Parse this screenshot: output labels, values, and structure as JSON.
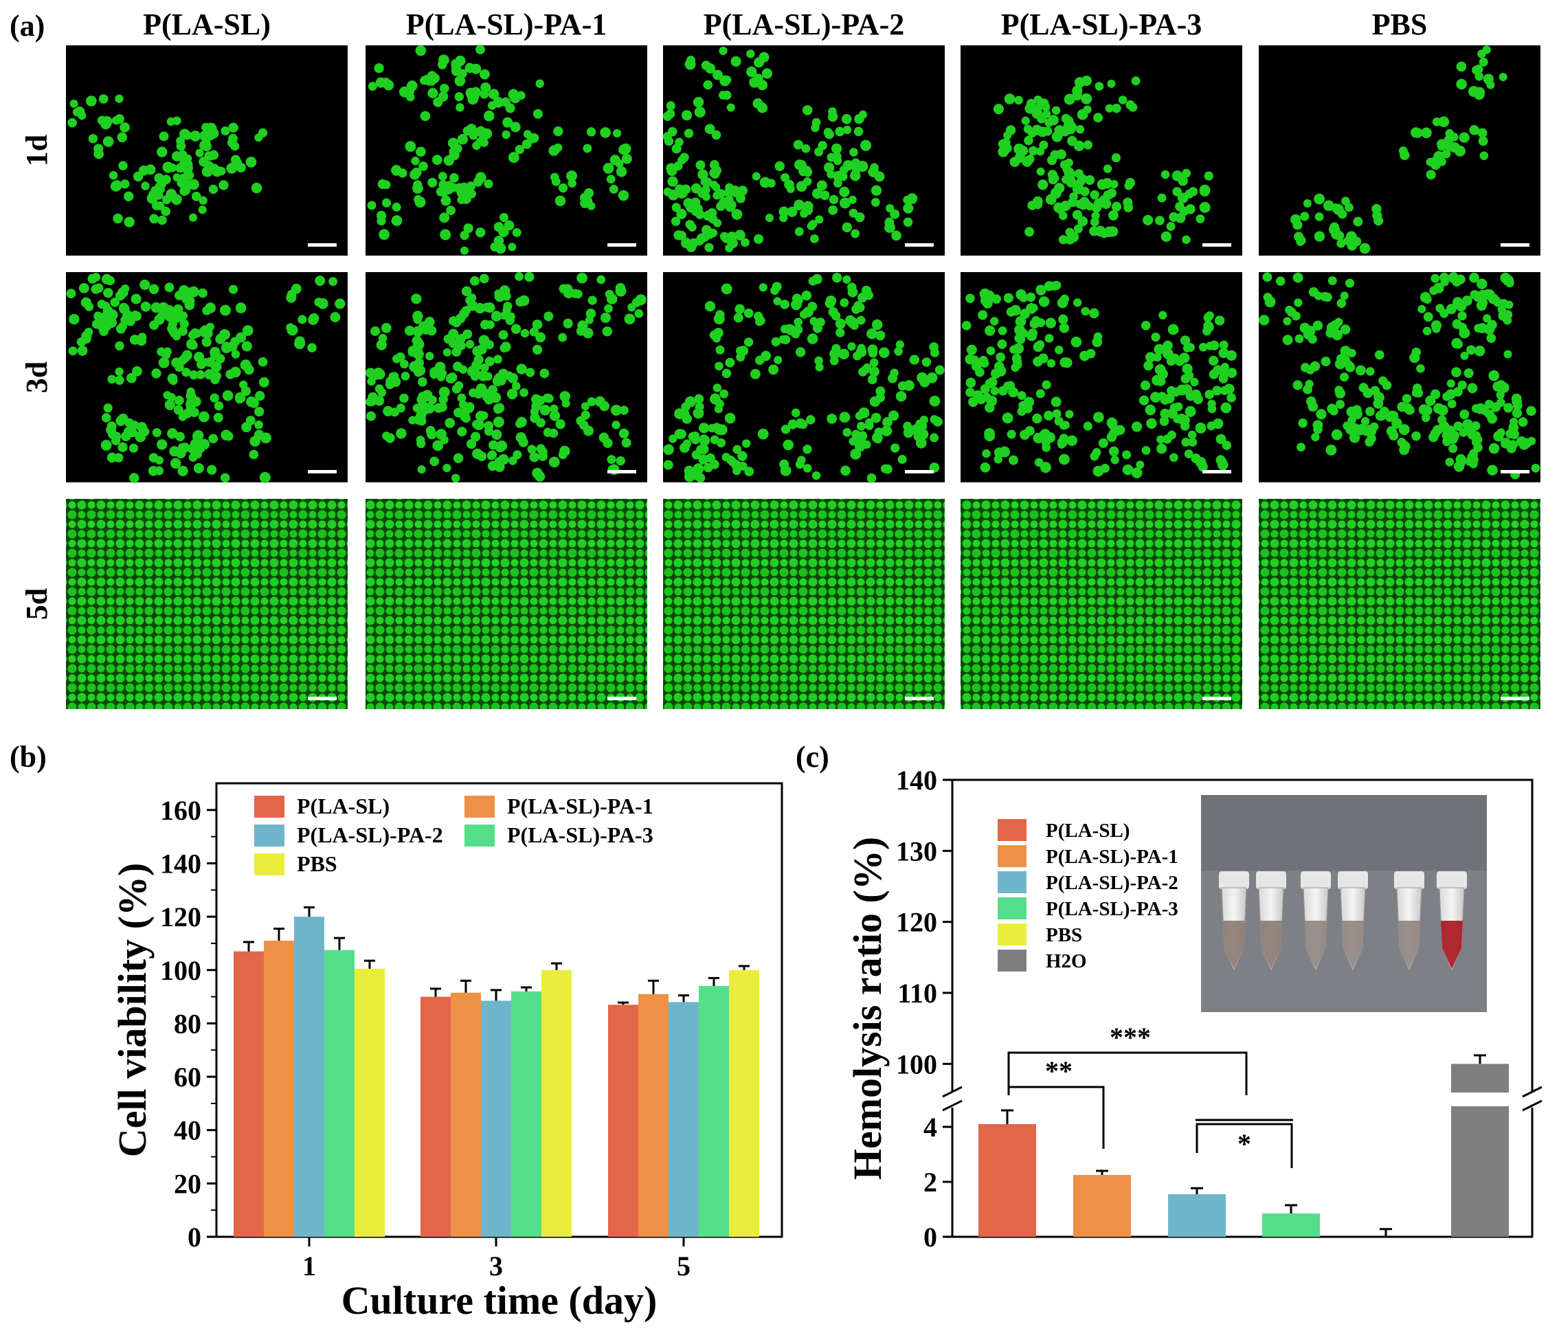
{
  "panel_a": {
    "letter": "(a)",
    "columns": [
      "P(LA-SL)",
      "P(LA-SL)-PA-1",
      "P(LA-SL)-PA-2",
      "P(LA-SL)-PA-3",
      "PBS"
    ],
    "rows": [
      "1d",
      "3d",
      "5d"
    ],
    "image_tone": "#1fd020",
    "density": [
      [
        0.35,
        0.55,
        0.6,
        0.45,
        0.22
      ],
      [
        0.75,
        0.78,
        0.72,
        0.7,
        0.74
      ],
      [
        1.0,
        1.0,
        1.0,
        1.0,
        1.0
      ]
    ]
  },
  "chart_data": [
    {
      "letter": "(b)",
      "type": "bar",
      "xlabel": "Culture time (day)",
      "ylabel": "Cell viability (%)",
      "categories": [
        "1",
        "3",
        "5"
      ],
      "ylim": [
        0,
        170
      ],
      "yticks": [
        0,
        20,
        40,
        60,
        80,
        100,
        120,
        140,
        160
      ],
      "legend_position": "top-left",
      "series": [
        {
          "name": "P(LA-SL)",
          "color": "#e2664a",
          "values": [
            107,
            90,
            87
          ],
          "errors": [
            3.5,
            3,
            0.8
          ]
        },
        {
          "name": "P(LA-SL)-PA-1",
          "color": "#ed9147",
          "values": [
            111,
            91.5,
            91
          ],
          "errors": [
            4.5,
            4.5,
            5
          ]
        },
        {
          "name": "P(LA-SL)-PA-2",
          "color": "#6fb5c9",
          "values": [
            120,
            88.5,
            88
          ],
          "errors": [
            3.5,
            4,
            2.5
          ]
        },
        {
          "name": "P(LA-SL)-PA-3",
          "color": "#55de8a",
          "values": [
            107.5,
            92,
            94
          ],
          "errors": [
            4.5,
            1.5,
            3
          ]
        },
        {
          "name": "PBS",
          "color": "#eaee3b",
          "values": [
            100.5,
            100,
            100
          ],
          "errors": [
            3,
            2.5,
            1.5
          ]
        }
      ]
    },
    {
      "letter": "(c)",
      "type": "bar",
      "ylabel": "Hemolysis ratio (%)",
      "axis_break": {
        "lower_range": [
          0,
          5
        ],
        "upper_range": [
          95,
          140
        ]
      },
      "lower_yticks": [
        0,
        2,
        4
      ],
      "upper_yticks": [
        100,
        110,
        120,
        130,
        140
      ],
      "legend_position": "top-left",
      "categories": [
        "P(LA-SL)",
        "P(LA-SL)-PA-1",
        "P(LA-SL)-PA-2",
        "P(LA-SL)-PA-3",
        "PBS",
        "H2O"
      ],
      "colors": [
        "#e2664a",
        "#ed9147",
        "#6fb5c9",
        "#55de8a",
        "#eaee3b",
        "#7f7f7f"
      ],
      "values": [
        4.1,
        2.25,
        1.55,
        0.85,
        0.0,
        100
      ],
      "errors": [
        0.5,
        0.15,
        0.22,
        0.3,
        0.28,
        1.2
      ],
      "significance": [
        {
          "label": "***",
          "between": [
            "P(LA-SL)",
            "P(LA-SL)-PA-2 / P(LA-SL)-PA-3"
          ]
        },
        {
          "label": "**",
          "between": [
            "P(LA-SL)",
            "P(LA-SL)-PA-1"
          ]
        },
        {
          "label": "*",
          "between": [
            "P(LA-SL)-PA-2",
            "P(LA-SL)-PA-3"
          ]
        }
      ],
      "inset": {
        "tube_count": 6,
        "tube_colors": [
          "#8a7a70",
          "#8a7a70",
          "#8f8580",
          "#8f8580",
          "#8f8580",
          "#a8141c"
        ],
        "background": "#7d8085"
      }
    }
  ]
}
